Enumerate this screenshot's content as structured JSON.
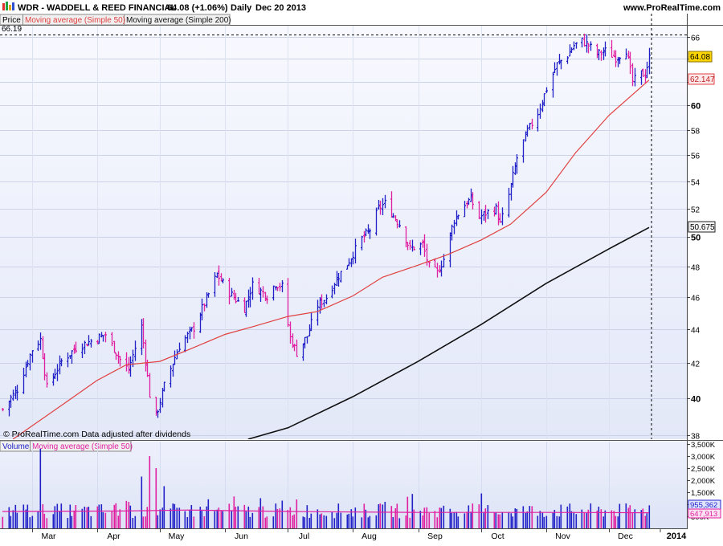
{
  "header": {
    "ticker_line": "WDR - WADDELL & REED FINANCIAL",
    "quote": "64.08 (+1.06%)",
    "period": "Daily",
    "date": "Dec 20 2013",
    "site": "www.ProRealTime.com"
  },
  "price_panel": {
    "legend_price": "Price",
    "legend_ma50": "Moving average (Simple 50)",
    "legend_ma200": "Moving average (Simple 200)",
    "high_marker": "66.19",
    "footer_note": "© ProRealTime.com  Data adjusted after dividends",
    "last_price_label": "64.08",
    "ma50_label": "62.147",
    "ma200_label": "50.675"
  },
  "volume_panel": {
    "legend_volume": "Volume",
    "legend_ma50": "Moving average (Simple 50)",
    "volume_label": "955,362",
    "ma_label": "647,913"
  },
  "colors": {
    "up_bar": "#2020c8",
    "down_bar": "#e020a0",
    "ma50": "#e04040",
    "ma200": "#101010",
    "panel_bg": "#e8ecfa",
    "price_badge": "#ffd700"
  },
  "chart_data": [
    {
      "type": "ohlc",
      "title": "WDR - WADDELL & REED FINANCIAL",
      "y_ticks": [
        38,
        40,
        42,
        44,
        46,
        48,
        50,
        52,
        54,
        56,
        58,
        60,
        62,
        64,
        66
      ],
      "y_tick_labels": [
        "38",
        "40",
        "42",
        "44",
        "46",
        "48",
        "50",
        "52",
        "54",
        "56",
        "58",
        "60",
        "",
        "",
        "66"
      ],
      "y_scale": "log",
      "ylim": [
        37.8,
        67
      ],
      "x_labels": [
        "Mar",
        "Apr",
        "May",
        "Jun",
        "Jul",
        "Aug",
        "Sep",
        "Oct",
        "Nov",
        "Dec",
        "2014"
      ],
      "grid": true,
      "series": [
        {
          "name": "Price",
          "close_points": [
            [
              "2013-02-15",
              39.4
            ],
            [
              "2013-02-22",
              40.5
            ],
            [
              "2013-03-01",
              42.8
            ],
            [
              "2013-03-05",
              43.4
            ],
            [
              "2013-03-08",
              40.6
            ],
            [
              "2013-03-15",
              42.1
            ],
            [
              "2013-03-22",
              42.9
            ],
            [
              "2013-03-29",
              43.3
            ],
            [
              "2013-04-05",
              43.7
            ],
            [
              "2013-04-12",
              42.2
            ],
            [
              "2013-04-16",
              41.6
            ],
            [
              "2013-04-19",
              42.9
            ],
            [
              "2013-04-22",
              44.2
            ],
            [
              "2013-04-26",
              40.2
            ],
            [
              "2013-04-29",
              39.0
            ],
            [
              "2013-05-03",
              40.7
            ],
            [
              "2013-05-10",
              43.0
            ],
            [
              "2013-05-17",
              44.1
            ],
            [
              "2013-05-24",
              46.2
            ],
            [
              "2013-05-28",
              47.5
            ],
            [
              "2013-06-03",
              46.3
            ],
            [
              "2013-06-10",
              45.3
            ],
            [
              "2013-06-14",
              46.8
            ],
            [
              "2013-06-21",
              46.1
            ],
            [
              "2013-06-25",
              46.9
            ],
            [
              "2013-06-28",
              46.7
            ],
            [
              "2013-07-02",
              43.5
            ],
            [
              "2013-07-05",
              42.6
            ],
            [
              "2013-07-10",
              43.6
            ],
            [
              "2013-07-15",
              45.5
            ],
            [
              "2013-07-19",
              46.0
            ],
            [
              "2013-07-24",
              47.2
            ],
            [
              "2013-07-30",
              48.4
            ],
            [
              "2013-08-05",
              49.9
            ],
            [
              "2013-08-09",
              50.5
            ],
            [
              "2013-08-13",
              52.0
            ],
            [
              "2013-08-16",
              52.4
            ],
            [
              "2013-08-20",
              51.5
            ],
            [
              "2013-08-23",
              50.9
            ],
            [
              "2013-08-28",
              49.2
            ],
            [
              "2013-09-03",
              49.5
            ],
            [
              "2013-09-06",
              48.0
            ],
            [
              "2013-09-10",
              47.6
            ],
            [
              "2013-09-13",
              48.5
            ],
            [
              "2013-09-18",
              51.2
            ],
            [
              "2013-09-23",
              52.3
            ],
            [
              "2013-09-26",
              52.7
            ],
            [
              "2013-09-30",
              51.4
            ],
            [
              "2013-10-03",
              51.7
            ],
            [
              "2013-10-08",
              52.0
            ],
            [
              "2013-10-10",
              50.9
            ],
            [
              "2013-10-14",
              53.0
            ],
            [
              "2013-10-18",
              55.8
            ],
            [
              "2013-10-23",
              57.9
            ],
            [
              "2013-10-28",
              59.4
            ],
            [
              "2013-11-01",
              61.4
            ],
            [
              "2013-11-06",
              63.5
            ],
            [
              "2013-11-11",
              64.3
            ],
            [
              "2013-11-14",
              65.2
            ],
            [
              "2013-11-18",
              65.6
            ],
            [
              "2013-11-21",
              65.2
            ],
            [
              "2013-11-25",
              64.4
            ],
            [
              "2013-11-29",
              64.7
            ],
            [
              "2013-12-04",
              64.1
            ],
            [
              "2013-12-09",
              64.8
            ],
            [
              "2013-12-12",
              62.0
            ],
            [
              "2013-12-16",
              62.7
            ],
            [
              "2013-12-18",
              62.6
            ],
            [
              "2013-12-20",
              64.08
            ]
          ]
        },
        {
          "name": "Moving average (Simple 50)",
          "points": [
            [
              "2013-02-20",
              37.8
            ],
            [
              "2013-03-15",
              39.6
            ],
            [
              "2013-04-01",
              41.0
            ],
            [
              "2013-04-15",
              41.9
            ],
            [
              "2013-05-01",
              42.1
            ],
            [
              "2013-05-15",
              42.8
            ],
            [
              "2013-06-01",
              43.7
            ],
            [
              "2013-06-15",
              44.2
            ],
            [
              "2013-07-01",
              44.8
            ],
            [
              "2013-07-15",
              45.1
            ],
            [
              "2013-08-01",
              46.1
            ],
            [
              "2013-08-15",
              47.3
            ],
            [
              "2013-09-01",
              48.1
            ],
            [
              "2013-09-15",
              48.8
            ],
            [
              "2013-10-01",
              49.8
            ],
            [
              "2013-10-15",
              50.9
            ],
            [
              "2013-11-01",
              53.2
            ],
            [
              "2013-11-15",
              56.2
            ],
            [
              "2013-12-01",
              59.2
            ],
            [
              "2013-12-20",
              62.147
            ]
          ]
        },
        {
          "name": "Moving average (Simple 200)",
          "points": [
            [
              "2013-06-12",
              37.8
            ],
            [
              "2013-07-01",
              38.4
            ],
            [
              "2013-08-01",
              40.1
            ],
            [
              "2013-09-01",
              42.1
            ],
            [
              "2013-10-01",
              44.3
            ],
            [
              "2013-11-01",
              46.9
            ],
            [
              "2013-12-01",
              49.2
            ],
            [
              "2013-12-20",
              50.675
            ]
          ]
        }
      ]
    },
    {
      "type": "bar",
      "title": "Volume",
      "y_ticks": [
        500000,
        1000000,
        1500000,
        2000000,
        2500000,
        3000000,
        3500000
      ],
      "y_tick_labels": [
        "500K",
        "1,000K",
        "1,500K",
        "2,000K",
        "2,500K",
        "3,000K",
        "3,500K"
      ],
      "ylim": [
        0,
        3600000
      ],
      "volume_points": [
        [
          "2013-03-05",
          3300000
        ],
        [
          "2013-04-16",
          1100000
        ],
        [
          "2013-04-22",
          2150000
        ],
        [
          "2013-04-26",
          3000000
        ],
        [
          "2013-04-29",
          2500000
        ],
        [
          "2013-05-03",
          1750000
        ],
        [
          "2013-06-28",
          1150000
        ],
        [
          "2013-07-05",
          1200000
        ],
        [
          "2013-08-16",
          1100000
        ],
        [
          "2013-12-20",
          955362
        ]
      ],
      "series": [
        {
          "name": "Moving average (Simple 50)",
          "points": [
            [
              "2013-02-15",
              700000
            ],
            [
              "2013-04-15",
              720000
            ],
            [
              "2013-05-15",
              760000
            ],
            [
              "2013-07-01",
              700000
            ],
            [
              "2013-09-01",
              660000
            ],
            [
              "2013-11-01",
              660000
            ],
            [
              "2013-12-20",
              647913
            ]
          ]
        }
      ]
    }
  ]
}
